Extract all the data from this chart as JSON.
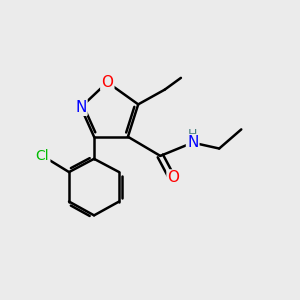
{
  "background_color": "#ebebeb",
  "bond_color": "#000000",
  "bond_width": 1.8,
  "atom_colors": {
    "O": "#ff0000",
    "N": "#0000ff",
    "Cl": "#00bb00",
    "C": "#000000",
    "H": "#4a8080"
  },
  "font_size": 10,
  "fig_width": 3.0,
  "fig_height": 3.0,
  "dpi": 100
}
